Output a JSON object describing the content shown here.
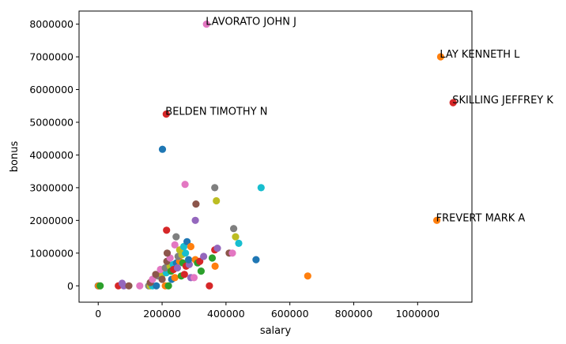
{
  "chart_data": {
    "type": "scatter",
    "title": "",
    "xlabel": "salary",
    "ylabel": "bonus",
    "xlim": [
      -60000,
      1170000
    ],
    "ylim": [
      -500000,
      8400000
    ],
    "grid": false,
    "x_ticks": [
      0,
      200000,
      400000,
      600000,
      800000,
      1000000
    ],
    "x_tick_labels": [
      "0",
      "200000",
      "400000",
      "600000",
      "800000",
      "1000000"
    ],
    "y_ticks": [
      0,
      1000000,
      2000000,
      3000000,
      4000000,
      5000000,
      6000000,
      7000000,
      8000000
    ],
    "y_tick_labels": [
      "0",
      "1000000",
      "2000000",
      "3000000",
      "4000000",
      "5000000",
      "6000000",
      "7000000",
      "8000000"
    ],
    "colors": [
      "#1f77b4",
      "#ff7f0e",
      "#2ca02c",
      "#d62728",
      "#9467bd",
      "#8c564b",
      "#e377c2",
      "#7f7f7f",
      "#bcbd22",
      "#17becf"
    ],
    "points": [
      [
        0,
        0
      ],
      [
        1000,
        0
      ],
      [
        6000,
        0
      ],
      [
        63000,
        0
      ],
      [
        80000,
        0
      ],
      [
        96000,
        0
      ],
      [
        130000,
        0
      ],
      [
        158000,
        0
      ],
      [
        163000,
        0
      ],
      [
        170000,
        0
      ],
      [
        182000,
        0
      ],
      [
        210000,
        0
      ],
      [
        220000,
        0
      ],
      [
        348000,
        0
      ],
      [
        75000,
        80000
      ],
      [
        163000,
        100000
      ],
      [
        170000,
        200000
      ],
      [
        187000,
        300000
      ],
      [
        200000,
        350000
      ],
      [
        213000,
        400000
      ],
      [
        230000,
        200000
      ],
      [
        240000,
        250000
      ],
      [
        260000,
        300000
      ],
      [
        270000,
        350000
      ],
      [
        290000,
        250000
      ],
      [
        180000,
        350000
      ],
      [
        195000,
        500000
      ],
      [
        210000,
        550000
      ],
      [
        225000,
        600000
      ],
      [
        235000,
        650000
      ],
      [
        245000,
        700000
      ],
      [
        255000,
        750000
      ],
      [
        265000,
        700000
      ],
      [
        275000,
        600000
      ],
      [
        285000,
        650000
      ],
      [
        215000,
        750000
      ],
      [
        225000,
        850000
      ],
      [
        250000,
        900000
      ],
      [
        262000,
        950000
      ],
      [
        273000,
        1000000
      ],
      [
        283000,
        800000
      ],
      [
        304000,
        800000
      ],
      [
        311000,
        700000
      ],
      [
        318000,
        750000
      ],
      [
        330000,
        900000
      ],
      [
        216000,
        1000000
      ],
      [
        240000,
        1250000
      ],
      [
        244000,
        1500000
      ],
      [
        255000,
        1100000
      ],
      [
        268000,
        1200000
      ],
      [
        278000,
        1350000
      ],
      [
        290000,
        1200000
      ],
      [
        357000,
        850000
      ],
      [
        365000,
        1100000
      ],
      [
        373000,
        1150000
      ],
      [
        410000,
        1000000
      ],
      [
        420000,
        1000000
      ],
      [
        424000,
        1750000
      ],
      [
        430000,
        1500000
      ],
      [
        440000,
        1300000
      ],
      [
        494000,
        800000
      ],
      [
        366000,
        600000
      ],
      [
        322000,
        450000
      ],
      [
        214000,
        1700000
      ],
      [
        304000,
        2000000
      ],
      [
        306000,
        2500000
      ],
      [
        272000,
        3100000
      ],
      [
        365000,
        3000000
      ],
      [
        370000,
        2600000
      ],
      [
        510000,
        3000000
      ],
      [
        201000,
        4175000
      ],
      [
        656000,
        300000
      ],
      [
        228000,
        450000
      ],
      [
        236000,
        500000
      ],
      [
        248000,
        550000
      ],
      [
        200000,
        200000
      ],
      [
        300000,
        250000
      ]
    ],
    "labeled_points": [
      {
        "name": "LAVORATO JOHN J",
        "x": 339000,
        "y": 8000000,
        "color": "#e377c2"
      },
      {
        "name": "LAY KENNETH L",
        "x": 1072000,
        "y": 7000000,
        "color": "#ff7f0e"
      },
      {
        "name": "SKILLING JEFFREY K",
        "x": 1111000,
        "y": 5600000,
        "color": "#d62728"
      },
      {
        "name": "BELDEN TIMOTHY N",
        "x": 213000,
        "y": 5249999,
        "color": "#d62728"
      },
      {
        "name": "FREVERT MARK A",
        "x": 1060000,
        "y": 2000000,
        "color": "#ff7f0e"
      }
    ]
  }
}
